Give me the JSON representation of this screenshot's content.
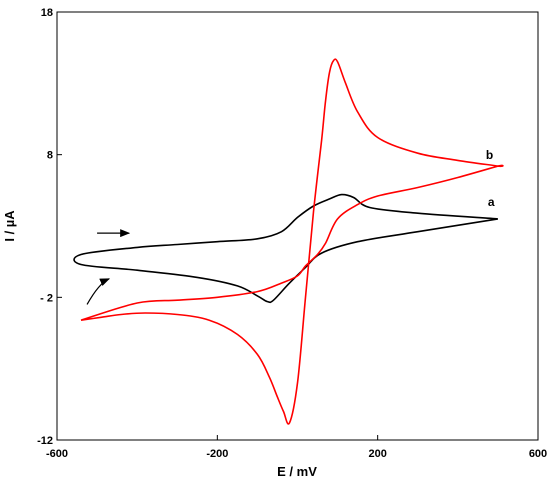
{
  "chart_data": {
    "type": "line",
    "title": "",
    "xlabel": "E / mV",
    "ylabel": "I / µA",
    "xlim": [
      -600,
      600
    ],
    "ylim": [
      -12,
      18
    ],
    "xticks": [
      -600,
      -200,
      200,
      600
    ],
    "xtick_labels": [
      "-600",
      "-200",
      "200",
      "600"
    ],
    "yticks": [
      -12,
      -2,
      8,
      18
    ],
    "ytick_labels": [
      "-12",
      "- 2",
      "8",
      "18"
    ],
    "grid": false,
    "legend": "none",
    "series": [
      {
        "name": "a",
        "color": "#000000",
        "x": [
          500,
          300,
          150,
          60,
          20,
          -20,
          -60,
          -75,
          -100,
          -150,
          -250,
          -400,
          -540,
          -540,
          -400,
          -300,
          -200,
          -100,
          -40,
          0,
          40,
          80,
          110,
          140,
          180,
          300,
          500
        ],
        "y": [
          3.5,
          2.6,
          1.9,
          1.1,
          0.1,
          -1.0,
          -2.2,
          -2.3,
          -1.9,
          -1.2,
          -0.6,
          -0.1,
          0.3,
          1.0,
          1.5,
          1.7,
          1.9,
          2.1,
          2.6,
          3.6,
          4.4,
          4.9,
          5.2,
          5.0,
          4.3,
          3.9,
          3.5
        ],
        "label_pos": {
          "x": 475,
          "y": 4.4
        }
      },
      {
        "name": "b",
        "color": "#ff0000",
        "x": [
          -540,
          -490,
          -440,
          -380,
          -300,
          -220,
          -150,
          -100,
          -70,
          -50,
          -35,
          -20,
          0,
          20,
          40,
          60,
          70,
          80,
          90,
          100,
          120,
          150,
          200,
          300,
          400,
          500,
          500,
          400,
          300,
          200,
          150,
          100,
          70,
          50,
          20,
          0,
          -40,
          -100,
          -200,
          -300,
          -400,
          -540
        ],
        "y": [
          -3.6,
          -3.4,
          -3.2,
          -3.1,
          -3.2,
          -3.6,
          -4.6,
          -6.0,
          -7.6,
          -9.0,
          -10.0,
          -10.8,
          -8.0,
          -2.0,
          4.0,
          9.0,
          11.8,
          13.8,
          14.6,
          14.5,
          13.0,
          11.0,
          9.2,
          8.1,
          7.6,
          7.2,
          7.2,
          6.4,
          5.7,
          5.1,
          4.5,
          3.5,
          1.8,
          1.0,
          0.2,
          -0.5,
          -1.0,
          -1.6,
          -2.0,
          -2.2,
          -2.4,
          -3.6
        ],
        "label_pos": {
          "x": 470,
          "y": 7.7
        }
      }
    ],
    "annotations": [
      {
        "type": "arrow",
        "name": "scan-direction-arrow-straight",
        "x": [
          -500,
          -420
        ],
        "y": [
          2.5,
          2.5
        ],
        "color": "#000000"
      },
      {
        "type": "curved-arrow",
        "name": "scan-direction-arrow-curved",
        "x": [
          -525,
          -495,
          -470
        ],
        "y": [
          -2.5,
          -1.0,
          -0.7
        ],
        "color": "#000000"
      }
    ]
  }
}
